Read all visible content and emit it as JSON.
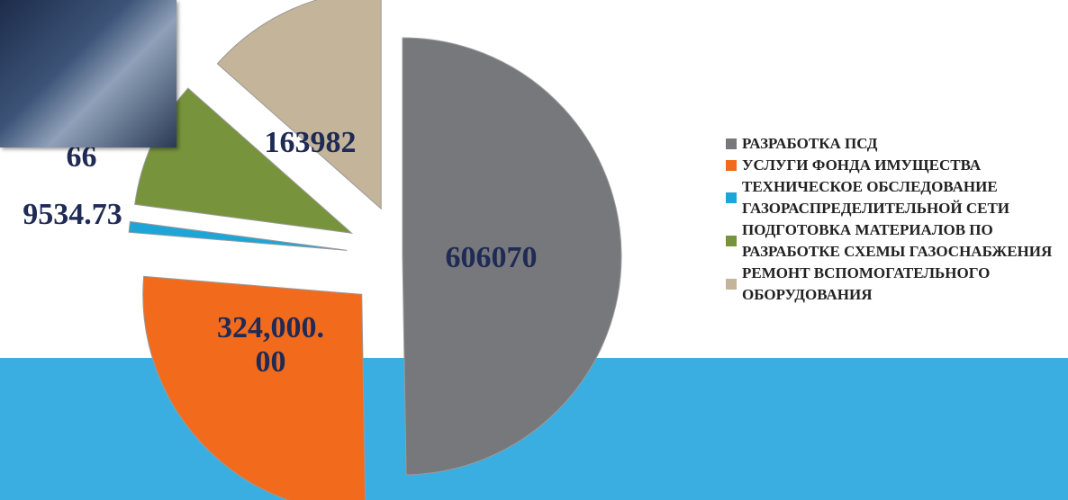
{
  "chart_data": {
    "type": "pie",
    "categories": [
      "РАЗРАБОТКА ПСД",
      "УСЛУГИ ФОНДА ИМУЩЕСТВА",
      "ТЕХНИЧЕСКОЕ ОБСЛЕДОВАНИЕ ГАЗОРАСПРЕДЕЛИТЕЛЬНОЙ СЕТИ",
      "ПОДГОТОВКА МАТЕРИАЛОВ ПО РАЗРАБОТКЕ СХЕМЫ ГАЗОСНАБЖЕНИЯ",
      "РЕМОНТ ВСПОМОГАТЕЛЬНОГО ОБОРУДОВАНИЯ"
    ],
    "values": [
      606070,
      324000,
      9534.73,
      115138.66,
      163982
    ],
    "value_labels": [
      "606070",
      "324,000.00",
      "9534.73",
      "115,138.66",
      "163982"
    ],
    "colors": [
      "#77787b",
      "#f26b1d",
      "#1ea5d8",
      "#77933c",
      "#c4b49a"
    ],
    "legend": "right"
  }
}
